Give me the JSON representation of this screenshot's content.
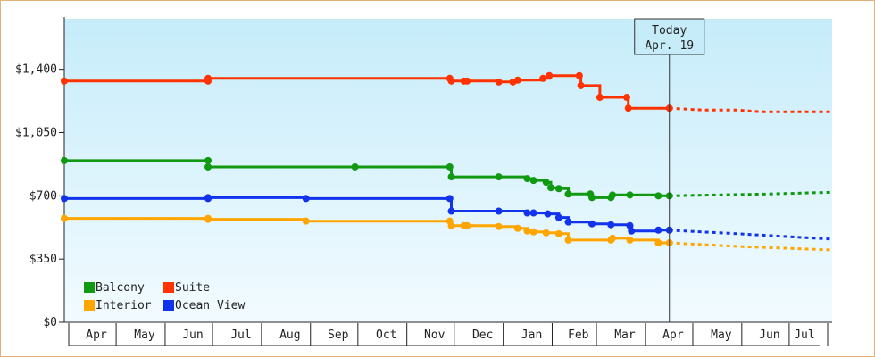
{
  "chart_data": {
    "type": "line",
    "title": "",
    "xlabel": "",
    "ylabel": "",
    "x_domain": [
      "2012-04-01",
      "2013-07-31"
    ],
    "ylim": [
      0,
      1680
    ],
    "y_ticks": [
      0,
      350,
      700,
      1050,
      1400
    ],
    "y_tick_labels": [
      "$0",
      "$350",
      "$700",
      "$1,050",
      "$1,400"
    ],
    "months": [
      "Apr",
      "May",
      "Jun",
      "Jul",
      "Aug",
      "Sep",
      "Oct",
      "Nov",
      "Dec",
      "Jan",
      "Feb",
      "Mar",
      "Apr",
      "May",
      "Jun",
      "Jul"
    ],
    "grid": false,
    "today": {
      "date": "2013-04-19",
      "label1": "Today",
      "label2": "Apr. 19"
    },
    "legend": {
      "position": "bottom-left",
      "entries": [
        {
          "name": "Balcony",
          "color": "#119911"
        },
        {
          "name": "Suite",
          "color": "#ff3300"
        },
        {
          "name": "Interior",
          "color": "#ffa500"
        },
        {
          "name": "Ocean View",
          "color": "#1133ee"
        }
      ]
    },
    "series": [
      {
        "name": "Suite",
        "color": "#ff3300",
        "points": [
          [
            "2012-04-01",
            1335
          ],
          [
            "2012-07-01",
            1335
          ],
          [
            "2012-07-01",
            1350
          ],
          [
            "2012-12-01",
            1350
          ],
          [
            "2012-12-02",
            1335
          ],
          [
            "2012-12-10",
            1335
          ],
          [
            "2012-12-12",
            1335
          ],
          [
            "2013-01-01",
            1330
          ],
          [
            "2013-01-10",
            1330
          ],
          [
            "2013-01-13",
            1340
          ],
          [
            "2013-01-29",
            1350
          ],
          [
            "2013-02-02",
            1365
          ],
          [
            "2013-02-21",
            1365
          ],
          [
            "2013-02-22",
            1310
          ],
          [
            "2013-03-06",
            1245
          ],
          [
            "2013-03-23",
            1245
          ],
          [
            "2013-03-24",
            1185
          ],
          [
            "2013-04-19",
            1185
          ]
        ],
        "forecast": [
          [
            "2013-04-19",
            1185
          ],
          [
            "2013-05-10",
            1175
          ],
          [
            "2013-06-01",
            1175
          ],
          [
            "2013-06-15",
            1165
          ],
          [
            "2013-07-31",
            1165
          ]
        ]
      },
      {
        "name": "Balcony",
        "color": "#119911",
        "points": [
          [
            "2012-04-01",
            895
          ],
          [
            "2012-07-01",
            895
          ],
          [
            "2012-07-01",
            860
          ],
          [
            "2012-10-02",
            860
          ],
          [
            "2012-12-01",
            860
          ],
          [
            "2012-12-02",
            805
          ],
          [
            "2013-01-01",
            805
          ],
          [
            "2013-01-19",
            795
          ],
          [
            "2013-01-23",
            785
          ],
          [
            "2013-01-31",
            775
          ],
          [
            "2013-02-03",
            745
          ],
          [
            "2013-02-08",
            740
          ],
          [
            "2013-02-14",
            710
          ],
          [
            "2013-02-28",
            710
          ],
          [
            "2013-03-01",
            690
          ],
          [
            "2013-03-13",
            690
          ],
          [
            "2013-03-14",
            705
          ],
          [
            "2013-03-25",
            705
          ],
          [
            "2013-04-12",
            700
          ],
          [
            "2013-04-19",
            700
          ]
        ],
        "forecast": [
          [
            "2013-04-19",
            700
          ],
          [
            "2013-05-20",
            705
          ],
          [
            "2013-06-20",
            710
          ],
          [
            "2013-07-31",
            720
          ]
        ]
      },
      {
        "name": "Ocean View",
        "color": "#1133ee",
        "points": [
          [
            "2012-04-01",
            685
          ],
          [
            "2012-07-01",
            685
          ],
          [
            "2012-07-01",
            690
          ],
          [
            "2012-09-01",
            685
          ],
          [
            "2012-12-01",
            685
          ],
          [
            "2012-12-02",
            615
          ],
          [
            "2013-01-01",
            615
          ],
          [
            "2013-01-19",
            605
          ],
          [
            "2013-01-23",
            605
          ],
          [
            "2013-02-01",
            600
          ],
          [
            "2013-02-08",
            580
          ],
          [
            "2013-02-14",
            555
          ],
          [
            "2013-03-01",
            545
          ],
          [
            "2013-03-13",
            540
          ],
          [
            "2013-03-25",
            535
          ],
          [
            "2013-03-26",
            505
          ],
          [
            "2013-04-12",
            510
          ],
          [
            "2013-04-19",
            510
          ]
        ],
        "forecast": [
          [
            "2013-04-19",
            510
          ],
          [
            "2013-05-10",
            500
          ],
          [
            "2013-06-01",
            490
          ],
          [
            "2013-07-01",
            475
          ],
          [
            "2013-07-31",
            460
          ]
        ]
      },
      {
        "name": "Interior",
        "color": "#ffa500",
        "points": [
          [
            "2012-04-01",
            575
          ],
          [
            "2012-07-01",
            575
          ],
          [
            "2012-07-01",
            570
          ],
          [
            "2012-09-01",
            560
          ],
          [
            "2012-12-01",
            560
          ],
          [
            "2012-12-02",
            535
          ],
          [
            "2012-12-10",
            535
          ],
          [
            "2012-12-12",
            535
          ],
          [
            "2013-01-01",
            530
          ],
          [
            "2013-01-13",
            520
          ],
          [
            "2013-01-19",
            505
          ],
          [
            "2013-01-23",
            500
          ],
          [
            "2013-01-31",
            495
          ],
          [
            "2013-02-08",
            490
          ],
          [
            "2013-02-14",
            455
          ],
          [
            "2013-03-13",
            455
          ],
          [
            "2013-03-14",
            465
          ],
          [
            "2013-03-25",
            455
          ],
          [
            "2013-04-12",
            440
          ],
          [
            "2013-04-19",
            440
          ]
        ],
        "forecast": [
          [
            "2013-04-19",
            440
          ],
          [
            "2013-05-10",
            430
          ],
          [
            "2013-06-01",
            420
          ],
          [
            "2013-07-01",
            410
          ],
          [
            "2013-07-31",
            400
          ]
        ]
      }
    ]
  }
}
